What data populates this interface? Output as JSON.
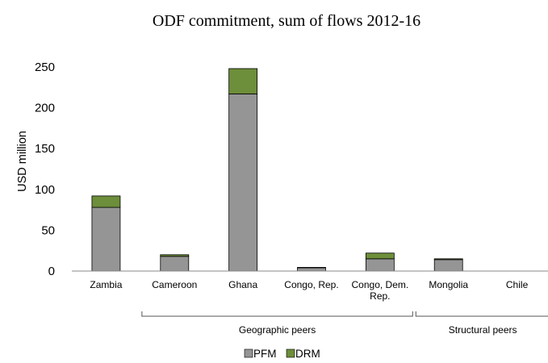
{
  "chart_data": {
    "type": "bar",
    "stacked": true,
    "title": "ODF commitment, sum of flows 2012-16",
    "xlabel": "",
    "ylabel": "USD million",
    "ylim": [
      0,
      250
    ],
    "yticks": [
      0,
      50,
      100,
      150,
      200,
      250
    ],
    "grid": false,
    "legend_position": "bottom",
    "categories": [
      [
        "Zambia"
      ],
      [
        "Cameroon"
      ],
      [
        "Ghana"
      ],
      [
        "Congo, Rep."
      ],
      [
        "Congo, Dem.",
        "Rep."
      ],
      [
        "Mongolia"
      ],
      [
        "Chile"
      ]
    ],
    "series": [
      {
        "name": "PFM",
        "color": "#959595",
        "values": [
          78,
          18,
          217,
          4,
          15,
          14,
          0
        ]
      },
      {
        "name": "DRM",
        "color": "#6d8e3a",
        "values": [
          14,
          2,
          31,
          0.5,
          7,
          1,
          0
        ]
      }
    ],
    "groups": [
      {
        "label": "Geographic peers",
        "from": 1,
        "to": 4
      },
      {
        "label": "Structural peers",
        "from": 5,
        "to": 6
      }
    ]
  }
}
